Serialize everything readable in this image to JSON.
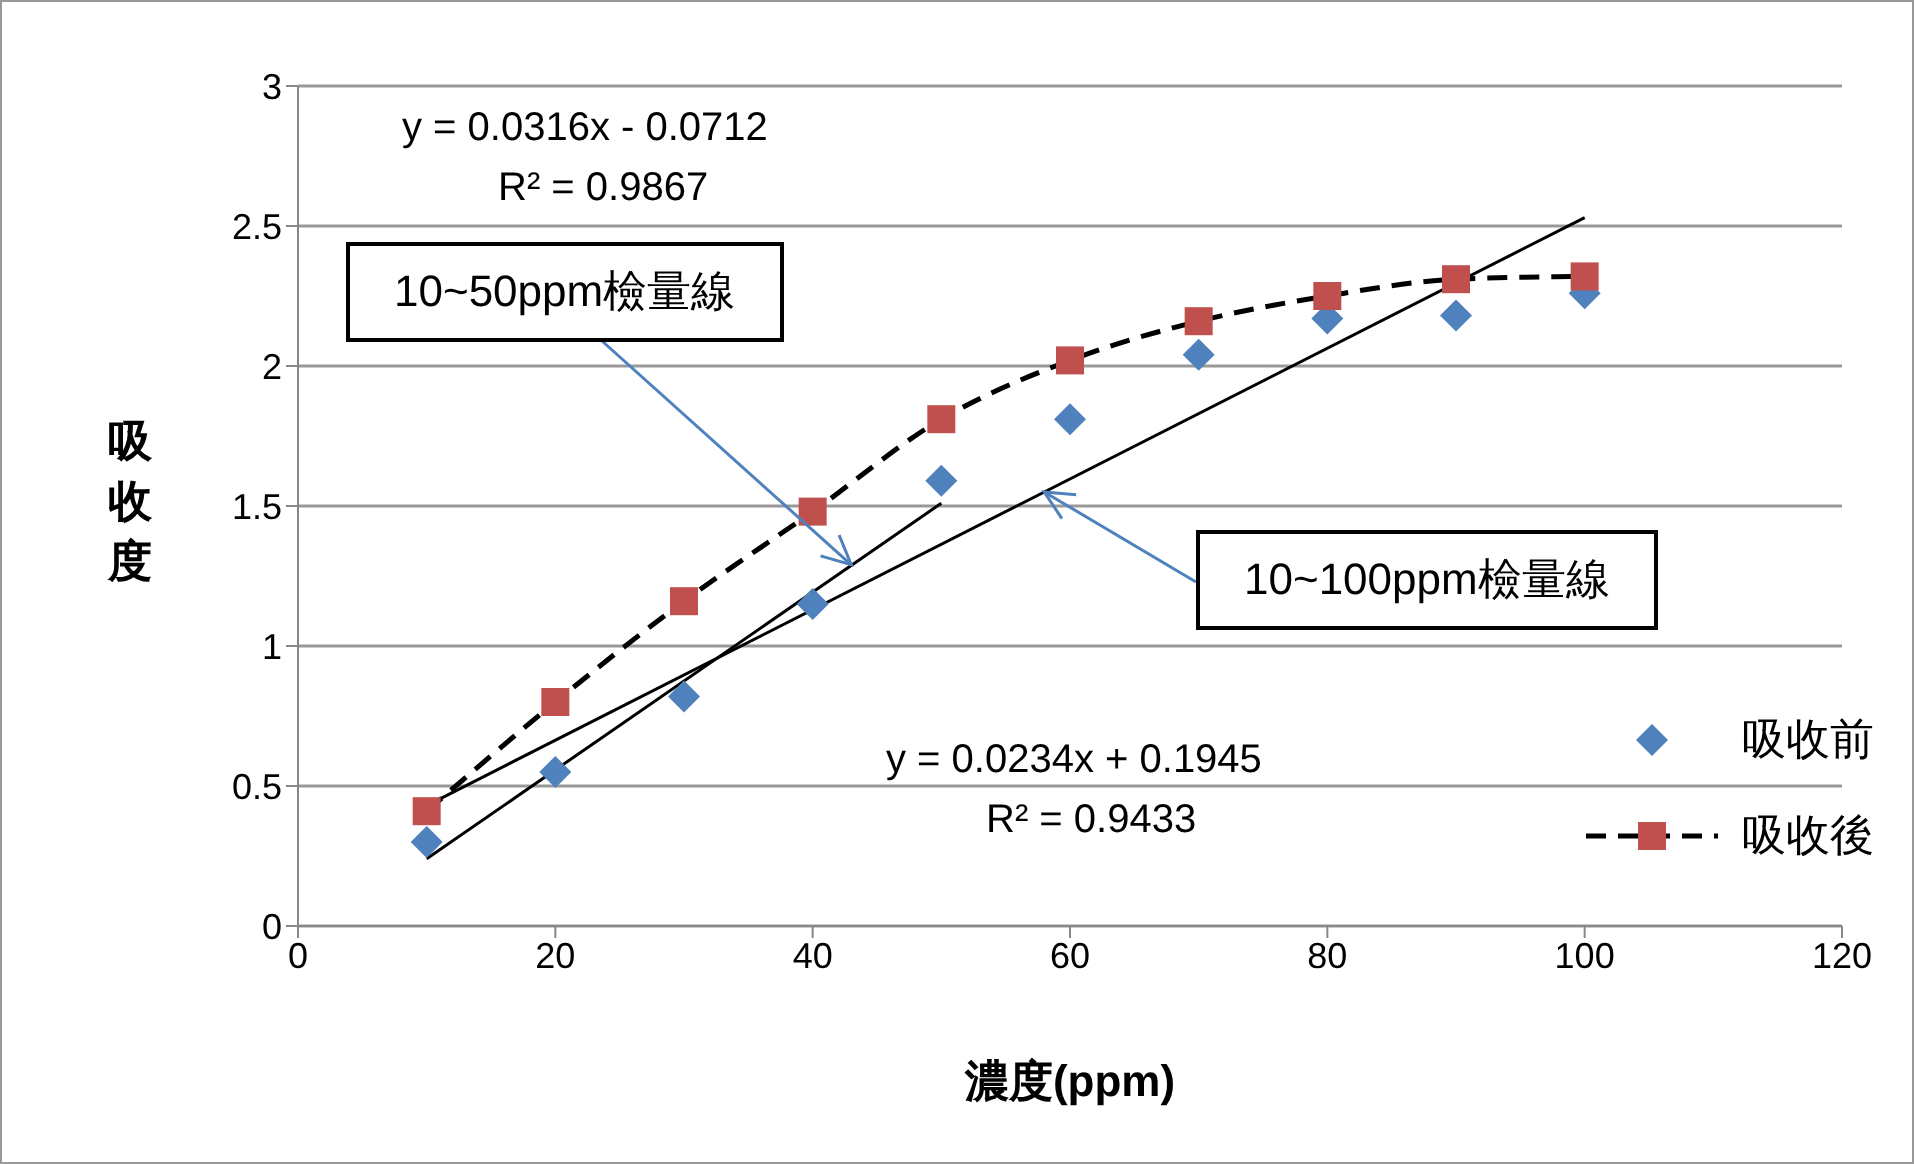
{
  "chart_data": {
    "type": "scatter",
    "xlabel": "濃度(ppm)",
    "ylabel": "吸收度",
    "x": [
      10,
      20,
      30,
      40,
      50,
      60,
      70,
      80,
      90,
      100
    ],
    "series": [
      {
        "name": "吸收前",
        "color": "#4f81bd",
        "marker": "diamond",
        "values": [
          0.3,
          0.55,
          0.82,
          1.15,
          1.59,
          1.81,
          2.04,
          2.17,
          2.18,
          2.26
        ]
      },
      {
        "name": "吸收後",
        "type": "line",
        "color": "#c0504d",
        "marker": "square",
        "line_style": "dashed",
        "values": [
          0.41,
          0.8,
          1.16,
          1.48,
          1.81,
          2.02,
          2.16,
          2.25,
          2.31,
          2.32
        ]
      },
      {
        "type": "line",
        "color": "#000000",
        "marker": "none",
        "line_style": "solid",
        "x": [
          10,
          50
        ],
        "values": [
          0.24,
          1.51
        ]
      },
      {
        "type": "line",
        "color": "#000000",
        "marker": "none",
        "line_style": "solid",
        "x": [
          10,
          100
        ],
        "values": [
          0.43,
          2.53
        ]
      }
    ],
    "xlim": [
      0,
      120
    ],
    "xticks": [
      0,
      20,
      40,
      60,
      80,
      100,
      120
    ],
    "ylim": [
      0,
      3
    ],
    "yticks": [
      0,
      0.5,
      1,
      1.5,
      2,
      2.5,
      3
    ],
    "grid": "y",
    "legend": "right",
    "annotations": [
      "y = 0.0316x - 0.0712",
      "R² = 0.9867",
      {
        "text": "10~50ppm檢量線",
        "x": 43,
        "y": 1.29
      },
      {
        "text": "10~100ppm檢量線",
        "x": 58,
        "y": 1.55
      },
      "y = 0.0234x + 0.1945",
      "R² = 0.9433"
    ]
  }
}
